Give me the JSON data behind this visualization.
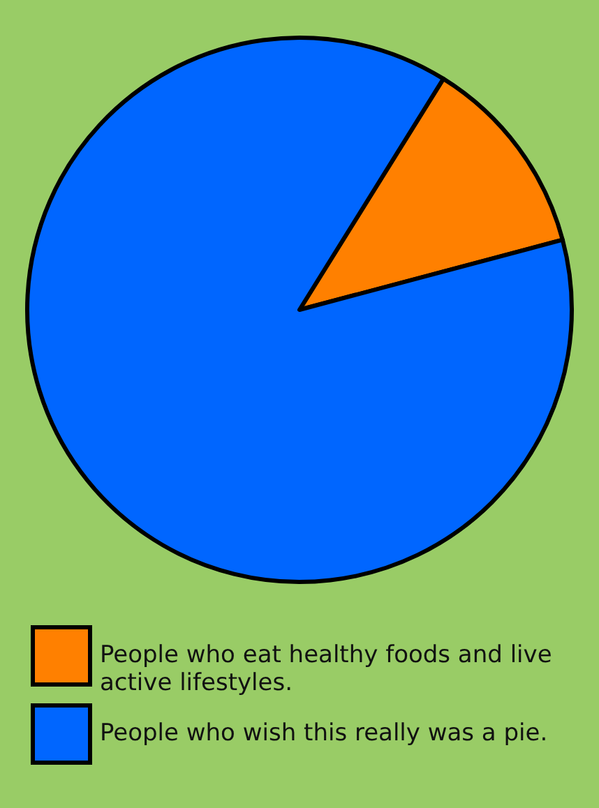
{
  "chart_data": {
    "type": "pie",
    "categories": [
      "People who eat healthy foods and live active lifestyles.",
      "People who wish this really was a pie."
    ],
    "values": [
      12,
      88
    ],
    "colors": [
      "#ff8000",
      "#0066ff"
    ],
    "legend": "bottom"
  }
}
